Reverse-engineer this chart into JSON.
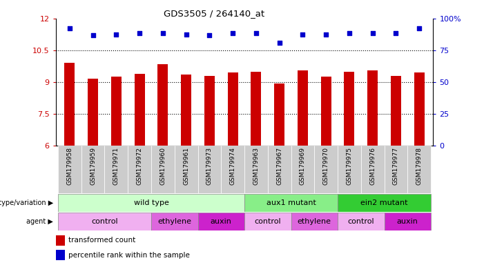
{
  "title": "GDS3505 / 264140_at",
  "samples": [
    "GSM179958",
    "GSM179959",
    "GSM179971",
    "GSM179972",
    "GSM179960",
    "GSM179961",
    "GSM179973",
    "GSM179974",
    "GSM179963",
    "GSM179967",
    "GSM179969",
    "GSM179970",
    "GSM179975",
    "GSM179976",
    "GSM179977",
    "GSM179978"
  ],
  "bar_values": [
    9.9,
    9.15,
    9.25,
    9.4,
    9.85,
    9.35,
    9.3,
    9.45,
    9.5,
    8.95,
    9.55,
    9.25,
    9.5,
    9.55,
    9.3,
    9.45
  ],
  "dot_values": [
    11.55,
    11.2,
    11.25,
    11.3,
    11.3,
    11.25,
    11.2,
    11.3,
    11.3,
    10.85,
    11.25,
    11.25,
    11.3,
    11.3,
    11.3,
    11.55
  ],
  "ylim_left": [
    6,
    12
  ],
  "ylim_right": [
    0,
    100
  ],
  "yticks_left": [
    6,
    7.5,
    9,
    10.5,
    12
  ],
  "ytick_labels_left": [
    "6",
    "7.5",
    "9",
    "10.5",
    "12"
  ],
  "yticks_right": [
    0,
    25,
    50,
    75,
    100
  ],
  "ytick_labels_right": [
    "0",
    "25",
    "50",
    "75",
    "100%"
  ],
  "bar_color": "#cc0000",
  "dot_color": "#0000cc",
  "bar_base": 6,
  "genotype_groups": [
    {
      "label": "wild type",
      "start": 0,
      "end": 8,
      "color": "#ccffcc"
    },
    {
      "label": "aux1 mutant",
      "start": 8,
      "end": 12,
      "color": "#88ee88"
    },
    {
      "label": "ein2 mutant",
      "start": 12,
      "end": 16,
      "color": "#33cc33"
    }
  ],
  "agent_groups": [
    {
      "label": "control",
      "start": 0,
      "end": 4,
      "color": "#f0b0f0"
    },
    {
      "label": "ethylene",
      "start": 4,
      "end": 6,
      "color": "#dd66dd"
    },
    {
      "label": "auxin",
      "start": 6,
      "end": 8,
      "color": "#cc22cc"
    },
    {
      "label": "control",
      "start": 8,
      "end": 10,
      "color": "#f0b0f0"
    },
    {
      "label": "ethylene",
      "start": 10,
      "end": 12,
      "color": "#dd66dd"
    },
    {
      "label": "control",
      "start": 12,
      "end": 14,
      "color": "#f0b0f0"
    },
    {
      "label": "auxin",
      "start": 14,
      "end": 16,
      "color": "#cc22cc"
    }
  ],
  "legend_bar_label": "transformed count",
  "legend_dot_label": "percentile rank within the sample",
  "tick_label_color_left": "#cc0000",
  "tick_label_color_right": "#0000cc",
  "background_color": "#ffffff",
  "xtick_bg_color": "#cccccc",
  "bar_width": 0.45
}
